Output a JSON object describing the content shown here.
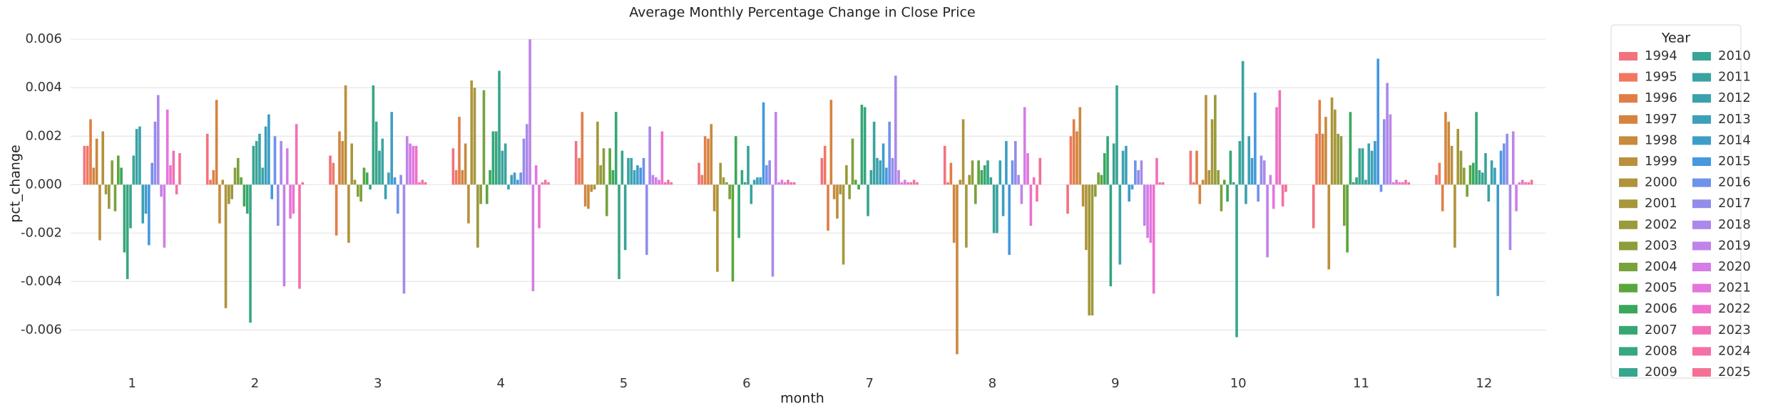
{
  "chart_data": {
    "type": "bar",
    "title": "Average Monthly Percentage Change in Close Price",
    "x_label": "month",
    "y_label": "pct_change",
    "legend_title": "Year",
    "categories": [
      "1",
      "2",
      "3",
      "4",
      "5",
      "6",
      "7",
      "8",
      "9",
      "10",
      "11",
      "12"
    ],
    "ylim": [
      -0.0074,
      0.0063
    ],
    "yticks": [
      -0.006,
      -0.004,
      -0.002,
      {
        "value": 0,
        "label": "0.000"
      },
      0.002,
      0.004,
      0.006
    ],
    "grid": true,
    "legend_position": "outside-right",
    "series": [
      {
        "name": "1994",
        "color": "#f3727f",
        "values": [
          0.0016,
          0.0021,
          0.0012,
          0.0015,
          0.0018,
          0.0009,
          0.0011,
          0.0016,
          -0.0012,
          0.0014,
          -0.0018,
          0.0004
        ]
      },
      {
        "name": "1995",
        "color": "#f0785f",
        "values": [
          0.0016,
          0.0002,
          0.0009,
          0.0006,
          0.0011,
          0.0004,
          0.0016,
          0.0001,
          0.002,
          0.0001,
          0.0021,
          0.0009
        ]
      },
      {
        "name": "1996",
        "color": "#e17e48",
        "values": [
          0.0027,
          0.0006,
          -0.0021,
          0.0028,
          0.003,
          0.002,
          -0.0019,
          0.0009,
          0.0027,
          0.0014,
          0.0035,
          -0.0011
        ]
      },
      {
        "name": "1997",
        "color": "#d4843f",
        "values": [
          0.0007,
          0.0035,
          0.0022,
          0.0006,
          -0.0009,
          0.0019,
          0.0035,
          -0.0024,
          0.0022,
          -0.0008,
          0.0021,
          0.003
        ]
      },
      {
        "name": "1998",
        "color": "#c88a3d",
        "values": [
          0.0019,
          -0.0016,
          0.0018,
          0.0017,
          -0.001,
          0.0025,
          -0.0006,
          -0.007,
          0.0032,
          0.0002,
          0.0028,
          0.0026
        ]
      },
      {
        "name": "1999",
        "color": "#bb8f3c",
        "values": [
          -0.0023,
          0.0002,
          0.0041,
          -0.0016,
          -0.0003,
          -0.0011,
          -0.0014,
          0.0002,
          -0.0009,
          0.0037,
          -0.0035,
          0.0016
        ]
      },
      {
        "name": "2000",
        "color": "#b0933b",
        "values": [
          0.0022,
          -0.0051,
          -0.0024,
          0.0043,
          -0.0002,
          -0.0036,
          -0.0004,
          0.0027,
          -0.0027,
          0.0006,
          0.0036,
          -0.0026
        ]
      },
      {
        "name": "2001",
        "color": "#a5973b",
        "values": [
          -0.0004,
          -0.0008,
          0.0017,
          0.004,
          0.0026,
          0.0009,
          -0.0033,
          -0.0026,
          -0.0054,
          0.0027,
          0.0031,
          0.0023
        ]
      },
      {
        "name": "2002",
        "color": "#999a3b",
        "values": [
          -0.001,
          -0.0006,
          0.0002,
          -0.0026,
          0.0008,
          0.0003,
          0.0008,
          0.0004,
          -0.0054,
          0.0037,
          0.0021,
          0.0014
        ]
      },
      {
        "name": "2003",
        "color": "#8b9e3b",
        "values": [
          0.001,
          0.0007,
          -0.0005,
          -0.0008,
          0.0015,
          0.0001,
          -0.0006,
          0.001,
          -0.0005,
          0.0006,
          0.002,
          0.0007
        ]
      },
      {
        "name": "2004",
        "color": "#78a23c",
        "values": [
          -0.0011,
          0.0011,
          -0.0007,
          0.0039,
          -0.0013,
          -0.0006,
          0.0019,
          -0.0008,
          0.0005,
          -0.0011,
          -0.0017,
          -0.0005
        ]
      },
      {
        "name": "2005",
        "color": "#5aa63c",
        "values": [
          0.0012,
          0.0003,
          0.0007,
          -0.0008,
          0.0015,
          -0.004,
          0.0002,
          0.001,
          0.0004,
          0.0002,
          -0.0028,
          0.0008
        ]
      },
      {
        "name": "2006",
        "color": "#3aa85a",
        "values": [
          0.0007,
          -0.0009,
          0.0005,
          0.0006,
          0.0006,
          0.002,
          -0.0002,
          0.0006,
          0.0013,
          -0.0007,
          0.003,
          0.0009
        ]
      },
      {
        "name": "2007",
        "color": "#36a773",
        "values": [
          -0.0028,
          -0.0012,
          -0.0002,
          0.0022,
          0.003,
          -0.0022,
          0.0033,
          0.0008,
          0.002,
          0.0014,
          0.0001,
          0.003
        ]
      },
      {
        "name": "2008",
        "color": "#37a682",
        "values": [
          -0.0039,
          -0.0057,
          0.0041,
          0.0022,
          -0.0039,
          0.0006,
          0.0032,
          0.001,
          -0.0042,
          0.0001,
          0.0003,
          0.0006
        ]
      },
      {
        "name": "2009",
        "color": "#38a58e",
        "values": [
          -0.0018,
          0.0016,
          0.0026,
          0.0047,
          0.0014,
          0.0001,
          -0.0013,
          0.0003,
          0.0017,
          -0.0063,
          0.0015,
          0.0005
        ]
      },
      {
        "name": "2010",
        "color": "#39a498",
        "values": [
          0.0012,
          0.0018,
          0.0014,
          0.0014,
          -0.0027,
          0.0016,
          0.0006,
          -0.002,
          0.0041,
          0.0018,
          0.0015,
          0.0013
        ]
      },
      {
        "name": "2011",
        "color": "#3aa3a2",
        "values": [
          0.0023,
          0.0021,
          0.0019,
          0.0017,
          0.0011,
          -0.0008,
          0.0026,
          -0.002,
          -0.0033,
          0.0051,
          0.0002,
          -0.0007
        ]
      },
      {
        "name": "2012",
        "color": "#3ba2ad",
        "values": [
          0.0024,
          0.0007,
          -0.0006,
          -0.0002,
          0.0011,
          0.0002,
          0.0011,
          0.001,
          0.0014,
          -0.0008,
          0.0017,
          0.001
        ]
      },
      {
        "name": "2013",
        "color": "#3ca0b9",
        "values": [
          -0.0016,
          0.0024,
          0.0005,
          0.0004,
          0.0006,
          0.0003,
          0.001,
          -0.0013,
          0.0016,
          0.002,
          0.0014,
          0.0007
        ]
      },
      {
        "name": "2014",
        "color": "#3e9dc8",
        "values": [
          -0.0012,
          0.0029,
          0.003,
          0.0005,
          0.0008,
          0.0003,
          0.0017,
          0.0018,
          -0.0007,
          0.0011,
          0.0018,
          -0.0046
        ]
      },
      {
        "name": "2015",
        "color": "#4698e0",
        "values": [
          -0.0025,
          -0.0006,
          0.0003,
          0.0002,
          0.0007,
          0.0034,
          0.0007,
          -0.0029,
          -0.0002,
          0.0038,
          0.0052,
          0.0014
        ]
      },
      {
        "name": "2016",
        "color": "#6e93ea",
        "values": [
          0.0009,
          0.002,
          -0.0012,
          0.0005,
          0.0011,
          0.0008,
          0.0026,
          0.001,
          0.001,
          -0.0007,
          -0.0003,
          0.0017
        ]
      },
      {
        "name": "2017",
        "color": "#928dea",
        "values": [
          0.0026,
          -0.0017,
          0.0004,
          0.0019,
          -0.0029,
          0.001,
          0.0011,
          0.0018,
          0.0006,
          0.0012,
          0.0027,
          0.0021
        ]
      },
      {
        "name": "2018",
        "color": "#ab88ea",
        "values": [
          0.0037,
          0.0018,
          -0.0045,
          0.0025,
          0.0024,
          -0.0038,
          0.0045,
          0.0004,
          0.001,
          0.001,
          0.0042,
          -0.0027
        ]
      },
      {
        "name": "2019",
        "color": "#c083e8",
        "values": [
          -0.0005,
          -0.0042,
          0.002,
          0.006,
          0.0004,
          0.003,
          0.0006,
          -0.0008,
          -0.0017,
          -0.003,
          0.0029,
          0.0022
        ]
      },
      {
        "name": "2020",
        "color": "#d37de5",
        "values": [
          -0.0026,
          0.0015,
          0.0017,
          -0.0044,
          0.0003,
          0.0001,
          0.0001,
          0.0032,
          -0.0022,
          0.0004,
          0.0001,
          -0.0011
        ]
      },
      {
        "name": "2021",
        "color": "#e475dd",
        "values": [
          0.0031,
          -0.0014,
          0.0016,
          0.0008,
          0.0002,
          0.0002,
          0.0002,
          0.0013,
          -0.0024,
          -0.001,
          0.0002,
          0.0001
        ]
      },
      {
        "name": "2022",
        "color": "#ee70cc",
        "values": [
          0.0008,
          -0.0012,
          0.0016,
          -0.0018,
          0.0022,
          0.0001,
          0.0001,
          -0.0017,
          -0.0045,
          0.0032,
          0.0001,
          0.0002
        ]
      },
      {
        "name": "2023",
        "color": "#f26fb8",
        "values": [
          0.0014,
          0.0025,
          0.0001,
          0.0001,
          0.0001,
          0.0002,
          0.0001,
          0.0003,
          0.0011,
          0.0039,
          0.0001,
          0.0001
        ]
      },
      {
        "name": "2024",
        "color": "#f470a6",
        "values": [
          -0.0004,
          -0.0043,
          0.0002,
          0.0002,
          0.0002,
          0.0001,
          0.0002,
          -0.0007,
          0.0001,
          -0.0009,
          0.0002,
          0.0001
        ]
      },
      {
        "name": "2025",
        "color": "#f47194",
        "values": [
          0.0013,
          0.0001,
          0.0001,
          0.0001,
          0.0001,
          0.0001,
          0.0001,
          0.0011,
          0.0001,
          -0.0003,
          0.0001,
          0.0002
        ]
      }
    ]
  }
}
